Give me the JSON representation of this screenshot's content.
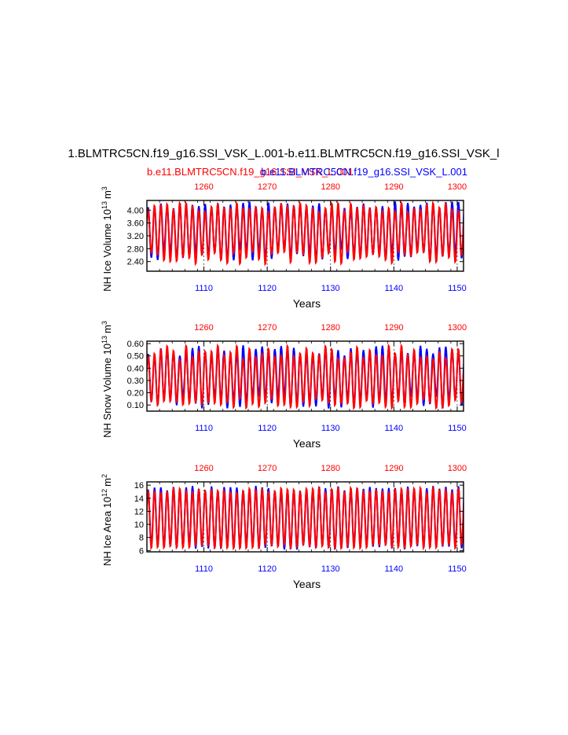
{
  "page_title": "1.BLMTRC5CN.f19_g16.SSI_VSK_L.001-b.e11.BLMTRC5CN.f19_g16.SSI_VSK_l",
  "legend": {
    "case1": "b.e11.BLMTRC5CN.f19_g16.SSI_VSK_L.001",
    "case2": "b.e11.BLMTRC5CN.f19_g16.SSI_VSK_L.001",
    "case1_color": "#ff0000",
    "case2_color": "#0000ff"
  },
  "chart_data": [
    {
      "type": "line",
      "name": "nh-ice-volume",
      "ylabel_main": "NH Ice Volume 10",
      "ylabel_sup": "13",
      "ylabel_unit": "m",
      "ylabel_unit_sup": "3",
      "xlabel": "Years",
      "ylim": [
        2.1,
        4.3
      ],
      "yticks": [
        "2.40",
        "2.80",
        "3.20",
        "3.60",
        "4.00"
      ],
      "bottom_xlim": [
        1101,
        1151
      ],
      "bottom_xticks": [
        "1110",
        "1120",
        "1130",
        "1140",
        "1150"
      ],
      "top_xlim": [
        1251,
        1301
      ],
      "top_xticks": [
        "1260",
        "1270",
        "1280",
        "1290",
        "1300"
      ],
      "series": [
        {
          "name": "case2",
          "color": "#0000ff",
          "seed": 11,
          "seasonal_max": 4.15,
          "seasonal_min": 2.6,
          "max_jitter": 0.12,
          "min_jitter": 0.18,
          "phase": 0.12
        },
        {
          "name": "case1",
          "color": "#ff0000",
          "seed": 29,
          "seasonal_max": 4.1,
          "seasonal_min": 2.5,
          "max_jitter": 0.15,
          "min_jitter": 0.2,
          "phase": 0.0
        }
      ]
    },
    {
      "type": "line",
      "name": "nh-snow-volume",
      "ylabel_main": "NH Snow Volume 10",
      "ylabel_sup": "13",
      "ylabel_unit": "m",
      "ylabel_unit_sup": "3",
      "xlabel": "Years",
      "ylim": [
        0.05,
        0.62
      ],
      "yticks": [
        "0.10",
        "0.20",
        "0.30",
        "0.40",
        "0.50",
        "0.60"
      ],
      "bottom_xlim": [
        1101,
        1151
      ],
      "bottom_xticks": [
        "1110",
        "1120",
        "1130",
        "1140",
        "1150"
      ],
      "top_xlim": [
        1251,
        1301
      ],
      "top_xticks": [
        "1260",
        "1270",
        "1280",
        "1290",
        "1300"
      ],
      "series": [
        {
          "name": "case2",
          "color": "#0000ff",
          "seed": 47,
          "seasonal_max": 0.54,
          "seasonal_min": 0.12,
          "max_jitter": 0.05,
          "min_jitter": 0.05,
          "phase": 0.12
        },
        {
          "name": "case1",
          "color": "#ff0000",
          "seed": 71,
          "seasonal_max": 0.53,
          "seasonal_min": 0.11,
          "max_jitter": 0.06,
          "min_jitter": 0.04,
          "phase": 0.0
        }
      ]
    },
    {
      "type": "line",
      "name": "nh-ice-area",
      "ylabel_main": "NH Ice Area 10",
      "ylabel_sup": "12",
      "ylabel_unit": "m",
      "ylabel_unit_sup": "2",
      "xlabel": "Years",
      "ylim": [
        5.8,
        16.5
      ],
      "yticks": [
        "6",
        "8",
        "10",
        "12",
        "14",
        "16"
      ],
      "bottom_xlim": [
        1101,
        1151
      ],
      "bottom_xticks": [
        "1110",
        "1120",
        "1130",
        "1140",
        "1150"
      ],
      "top_xlim": [
        1251,
        1301
      ],
      "top_xticks": [
        "1260",
        "1270",
        "1280",
        "1290",
        "1300"
      ],
      "series": [
        {
          "name": "case2",
          "color": "#0000ff",
          "seed": 83,
          "seasonal_max": 15.5,
          "seasonal_min": 6.5,
          "max_jitter": 0.4,
          "min_jitter": 0.35,
          "phase": 0.12
        },
        {
          "name": "case1",
          "color": "#ff0000",
          "seed": 97,
          "seasonal_max": 15.3,
          "seasonal_min": 6.6,
          "max_jitter": 0.4,
          "min_jitter": 0.35,
          "phase": 0.0
        }
      ]
    }
  ]
}
